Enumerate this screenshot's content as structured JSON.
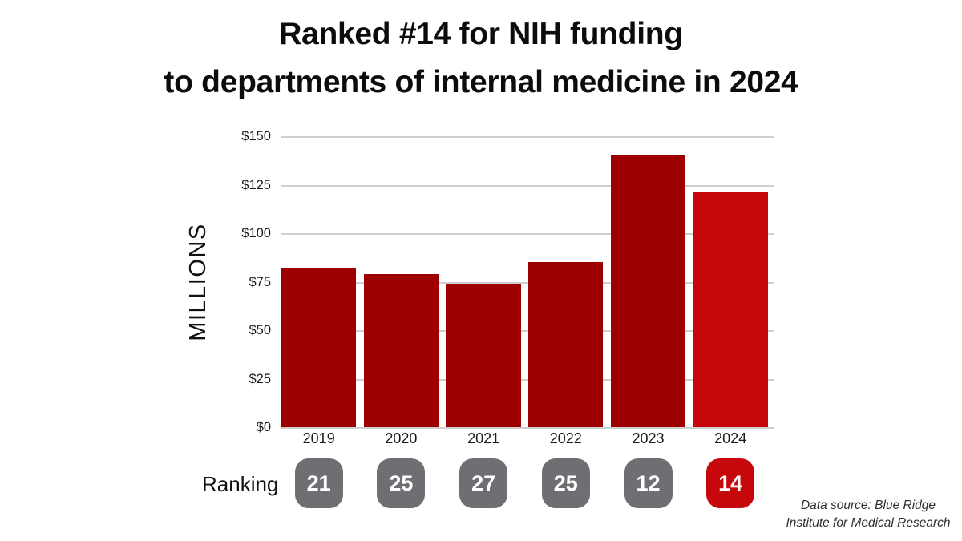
{
  "title": {
    "line1": "Ranked #14 for NIH funding",
    "line2": "to departments of internal medicine in 2024"
  },
  "chart_data": {
    "type": "bar",
    "title": "Ranked #14 for NIH funding to departments of internal medicine in 2024",
    "categories": [
      "2019",
      "2020",
      "2021",
      "2022",
      "2023",
      "2024"
    ],
    "values": [
      82,
      79,
      74,
      85,
      140,
      121
    ],
    "rankings": [
      21,
      25,
      27,
      25,
      12,
      14
    ],
    "highlight_index": 5,
    "ylabel": "MILLIONS",
    "xlabel": "",
    "ylim": [
      0,
      150
    ],
    "ytick_labels": [
      "$150",
      "$125",
      "$100",
      "$75",
      "$50",
      "$25",
      "$0"
    ],
    "grid": true,
    "legend": "none",
    "bar_color": "#9E0002",
    "highlight_color": "#C6080D",
    "gridline_color": "#cfcfcf"
  },
  "ranking_row": {
    "label": "Ranking",
    "badge_gray": "#6E6F72",
    "badge_red": "#C6080D",
    "badge_text_color": "#ffffff"
  },
  "source": {
    "line1": "Data source: Blue Ridge",
    "line2": "Institute for Medical Research"
  }
}
